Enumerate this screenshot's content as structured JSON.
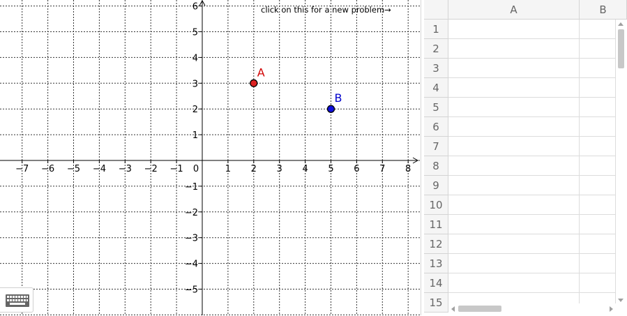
{
  "graphics": {
    "new_problem_text": "click on this for a new problem→",
    "axes": {
      "x_min": -8,
      "x_max": 8,
      "y_min": -6,
      "y_max": 6,
      "x_tick_labels": [
        "−7",
        "−6",
        "−5",
        "−4",
        "−3",
        "−2",
        "−1",
        "0",
        "1",
        "2",
        "3",
        "4",
        "5",
        "6",
        "7",
        "8"
      ],
      "x_tick_values": [
        -7,
        -6,
        -5,
        -4,
        -3,
        -2,
        -1,
        0,
        1,
        2,
        3,
        4,
        5,
        6,
        7,
        8
      ],
      "y_tick_labels": [
        "6",
        "5",
        "4",
        "3",
        "2",
        "1",
        "−1",
        "−2",
        "−3",
        "−4",
        "−5"
      ],
      "y_tick_values": [
        6,
        5,
        4,
        3,
        2,
        1,
        -1,
        -2,
        -3,
        -4,
        -5
      ],
      "grid": true
    },
    "points": [
      {
        "label": "A",
        "x": 2,
        "y": 3,
        "color": "#d00000",
        "fill": "#dd2222"
      },
      {
        "label": "B",
        "x": 5,
        "y": 2,
        "color": "#0000cc",
        "fill": "#1010dd"
      }
    ]
  },
  "spreadsheet": {
    "columns": [
      "A",
      "B"
    ],
    "rows": [
      "1",
      "2",
      "3",
      "4",
      "5",
      "6",
      "7",
      "8",
      "9",
      "10",
      "11",
      "12",
      "13",
      "14",
      "15"
    ]
  },
  "icons": {
    "keyboard": "keyboard-icon"
  }
}
